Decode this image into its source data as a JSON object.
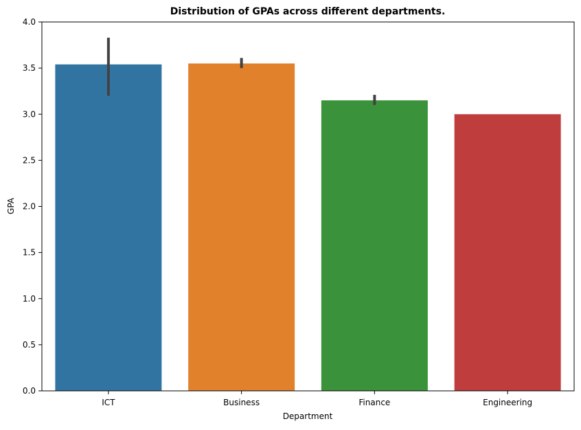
{
  "chart_data": {
    "type": "bar",
    "title": "Distribution of GPAs across different departments.",
    "xlabel": "Department",
    "ylabel": "GPA",
    "categories": [
      "ICT",
      "Business",
      "Finance",
      "Engineering"
    ],
    "values": [
      3.54,
      3.55,
      3.15,
      3.0
    ],
    "error_low": [
      3.2,
      3.5,
      3.1,
      3.0
    ],
    "error_high": [
      3.83,
      3.61,
      3.21,
      3.0
    ],
    "ylim": [
      0,
      4.0
    ],
    "yticks": [
      0.0,
      0.5,
      1.0,
      1.5,
      2.0,
      2.5,
      3.0,
      3.5,
      4.0
    ],
    "ytick_labels": [
      "0.0",
      "0.5",
      "1.0",
      "1.5",
      "2.0",
      "2.5",
      "3.0",
      "3.5",
      "4.0"
    ],
    "colors": [
      "#3274a1",
      "#e1812c",
      "#3a923a",
      "#c03d3e"
    ],
    "error_color": "#424242",
    "grid": false,
    "legend": "none"
  }
}
